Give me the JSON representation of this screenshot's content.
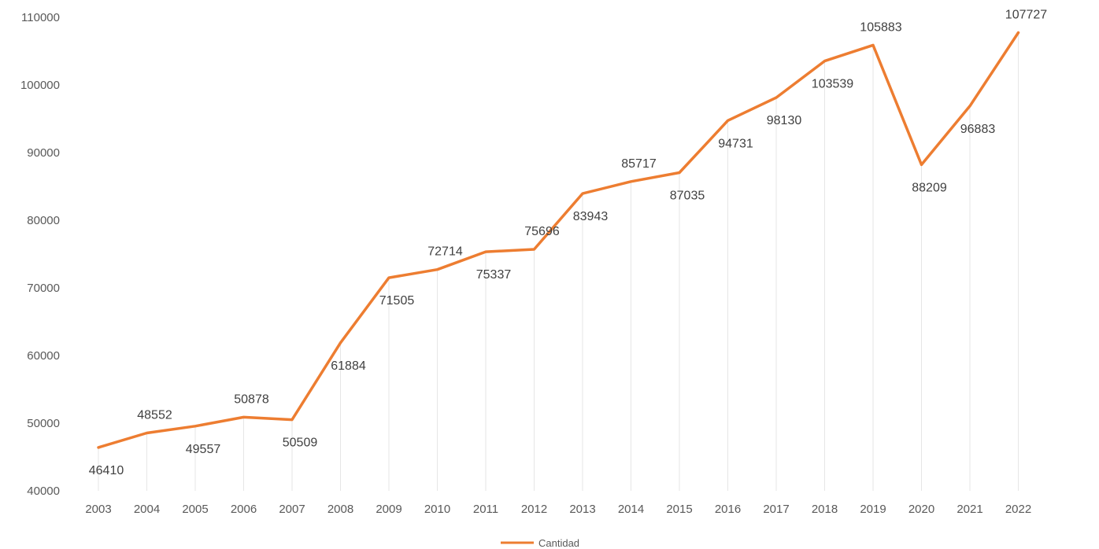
{
  "chart_data": {
    "type": "line",
    "title": "",
    "xlabel": "",
    "ylabel": "",
    "ylim": [
      40000,
      110000
    ],
    "yticks": [
      "40000",
      "50000",
      "60000",
      "70000",
      "80000",
      "90000",
      "100000",
      "110000"
    ],
    "grid": false,
    "legend": "bottom",
    "categories": [
      "2003",
      "2004",
      "2005",
      "2006",
      "2007",
      "2008",
      "2009",
      "2010",
      "2011",
      "2012",
      "2013",
      "2014",
      "2015",
      "2016",
      "2017",
      "2018",
      "2019",
      "2020",
      "2021",
      "2022"
    ],
    "series": [
      {
        "name": "Cantidad",
        "color": "#ED7D31",
        "values": [
          46410,
          48552,
          49557,
          50878,
          50509,
          61884,
          71505,
          72714,
          75337,
          75696,
          83943,
          85717,
          87035,
          94731,
          98130,
          103539,
          105883,
          88209,
          96883,
          107727
        ],
        "labels": [
          "46410",
          "48552",
          "49557",
          "50878",
          "50509",
          "61884",
          "71505",
          "72714",
          "75337",
          "75696",
          "83943",
          "85717",
          "87035",
          "94731",
          "98130",
          "103539",
          "105883",
          "88209",
          "96883",
          "107727"
        ]
      }
    ]
  }
}
